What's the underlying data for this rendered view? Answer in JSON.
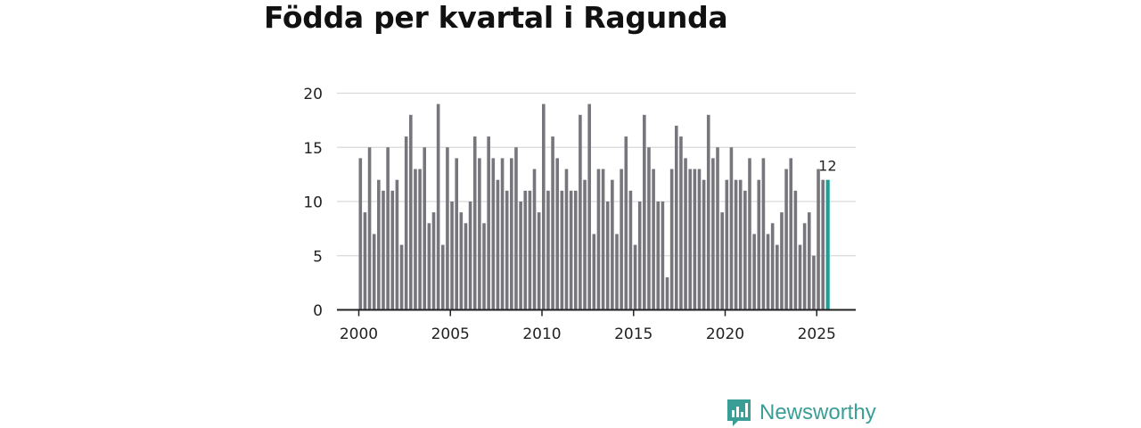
{
  "title": "Födda per kvartal i Ragunda",
  "brand": {
    "name": "Newsworthy",
    "color": "#3a9e96"
  },
  "colors": {
    "bar": "#77767c",
    "highlight": "#1e9e94",
    "grid": "#d9d9d9",
    "axis": "#222222"
  },
  "chart_data": {
    "type": "bar",
    "title": "Födda per kvartal i Ragunda",
    "xlabel": "",
    "ylabel": "",
    "x_start_year": 2000,
    "periods_per_year": 4,
    "values": [
      14,
      9,
      15,
      7,
      12,
      11,
      15,
      11,
      12,
      6,
      16,
      18,
      13,
      13,
      15,
      8,
      9,
      19,
      6,
      15,
      10,
      14,
      9,
      8,
      10,
      16,
      14,
      8,
      16,
      14,
      12,
      14,
      11,
      14,
      15,
      10,
      11,
      11,
      13,
      9,
      19,
      11,
      16,
      14,
      11,
      13,
      11,
      11,
      18,
      12,
      19,
      7,
      13,
      13,
      10,
      12,
      7,
      13,
      16,
      11,
      6,
      10,
      18,
      15,
      13,
      10,
      10,
      3,
      13,
      17,
      16,
      14,
      13,
      13,
      13,
      12,
      18,
      14,
      15,
      9,
      12,
      15,
      12,
      12,
      11,
      14,
      7,
      12,
      14,
      7,
      8,
      6,
      9,
      13,
      14,
      11,
      6,
      8,
      9,
      5,
      13,
      12,
      12
    ],
    "highlight_index": 102,
    "highlight_label": "12",
    "ylim": [
      0,
      20
    ],
    "yticks": [
      0,
      5,
      10,
      15,
      20
    ],
    "xticks": [
      "2000",
      "2005",
      "2010",
      "2015",
      "2020",
      "2025"
    ],
    "grid": true,
    "legend": "none"
  }
}
